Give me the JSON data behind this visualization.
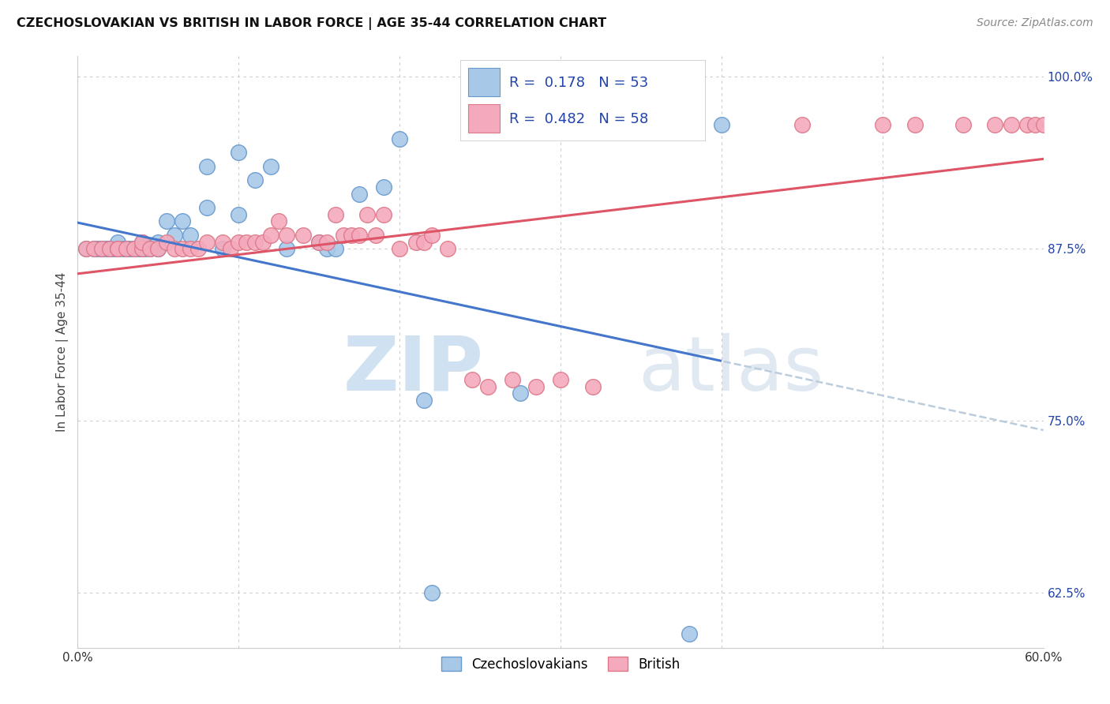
{
  "title": "CZECHOSLOVAKIAN VS BRITISH IN LABOR FORCE | AGE 35-44 CORRELATION CHART",
  "source": "Source: ZipAtlas.com",
  "ylabel": "In Labor Force | Age 35-44",
  "x_min": 0.0,
  "x_max": 0.6,
  "y_min": 0.585,
  "y_max": 1.015,
  "czech_color": "#A8C8E8",
  "british_color": "#F4AABC",
  "czech_edge": "#6699CC",
  "british_edge": "#DD7788",
  "trend_blue": "#4477CC",
  "trend_pink": "#DD5566",
  "trend_dash": "#BBCCDD",
  "czech_R": 0.178,
  "czech_N": 53,
  "british_R": 0.482,
  "british_N": 58,
  "legend_color": "#2244AA",
  "y_ticks": [
    1.0,
    0.875,
    0.75,
    0.625
  ],
  "y_tick_labels": [
    "100.0%",
    "87.5%",
    "75.0%",
    "62.5%"
  ],
  "czech_x": [
    0.005,
    0.01,
    0.012,
    0.015,
    0.015,
    0.018,
    0.02,
    0.02,
    0.022,
    0.025,
    0.025,
    0.025,
    0.028,
    0.03,
    0.03,
    0.03,
    0.03,
    0.032,
    0.035,
    0.035,
    0.038,
    0.04,
    0.04,
    0.04,
    0.04,
    0.042,
    0.045,
    0.05,
    0.05,
    0.05,
    0.055,
    0.06,
    0.065,
    0.07,
    0.08,
    0.08,
    0.09,
    0.1,
    0.1,
    0.11,
    0.12,
    0.13,
    0.15,
    0.155,
    0.16,
    0.175,
    0.19,
    0.2,
    0.215,
    0.22,
    0.275,
    0.38,
    0.4
  ],
  "czech_y": [
    0.875,
    0.875,
    0.875,
    0.875,
    0.875,
    0.875,
    0.875,
    0.875,
    0.875,
    0.875,
    0.875,
    0.88,
    0.875,
    0.875,
    0.875,
    0.875,
    0.875,
    0.875,
    0.875,
    0.875,
    0.875,
    0.875,
    0.875,
    0.875,
    0.88,
    0.875,
    0.875,
    0.875,
    0.875,
    0.88,
    0.895,
    0.885,
    0.895,
    0.885,
    0.905,
    0.935,
    0.875,
    0.945,
    0.9,
    0.925,
    0.935,
    0.875,
    0.88,
    0.875,
    0.875,
    0.915,
    0.92,
    0.955,
    0.765,
    0.625,
    0.77,
    0.595,
    0.965
  ],
  "british_x": [
    0.005,
    0.01,
    0.015,
    0.02,
    0.025,
    0.025,
    0.03,
    0.035,
    0.04,
    0.04,
    0.045,
    0.05,
    0.055,
    0.06,
    0.065,
    0.07,
    0.075,
    0.08,
    0.09,
    0.095,
    0.1,
    0.105,
    0.11,
    0.115,
    0.12,
    0.125,
    0.13,
    0.14,
    0.15,
    0.155,
    0.16,
    0.165,
    0.17,
    0.175,
    0.18,
    0.185,
    0.19,
    0.2,
    0.21,
    0.215,
    0.22,
    0.23,
    0.245,
    0.255,
    0.27,
    0.285,
    0.3,
    0.32,
    0.38,
    0.45,
    0.5,
    0.52,
    0.55,
    0.57,
    0.58,
    0.59,
    0.595,
    0.6
  ],
  "british_y": [
    0.875,
    0.875,
    0.875,
    0.875,
    0.875,
    0.875,
    0.875,
    0.875,
    0.875,
    0.88,
    0.875,
    0.875,
    0.88,
    0.875,
    0.875,
    0.875,
    0.875,
    0.88,
    0.88,
    0.875,
    0.88,
    0.88,
    0.88,
    0.88,
    0.885,
    0.895,
    0.885,
    0.885,
    0.88,
    0.88,
    0.9,
    0.885,
    0.885,
    0.885,
    0.9,
    0.885,
    0.9,
    0.875,
    0.88,
    0.88,
    0.885,
    0.875,
    0.78,
    0.775,
    0.78,
    0.775,
    0.78,
    0.775,
    0.965,
    0.965,
    0.965,
    0.965,
    0.965,
    0.965,
    0.965,
    0.965,
    0.965,
    0.965
  ]
}
